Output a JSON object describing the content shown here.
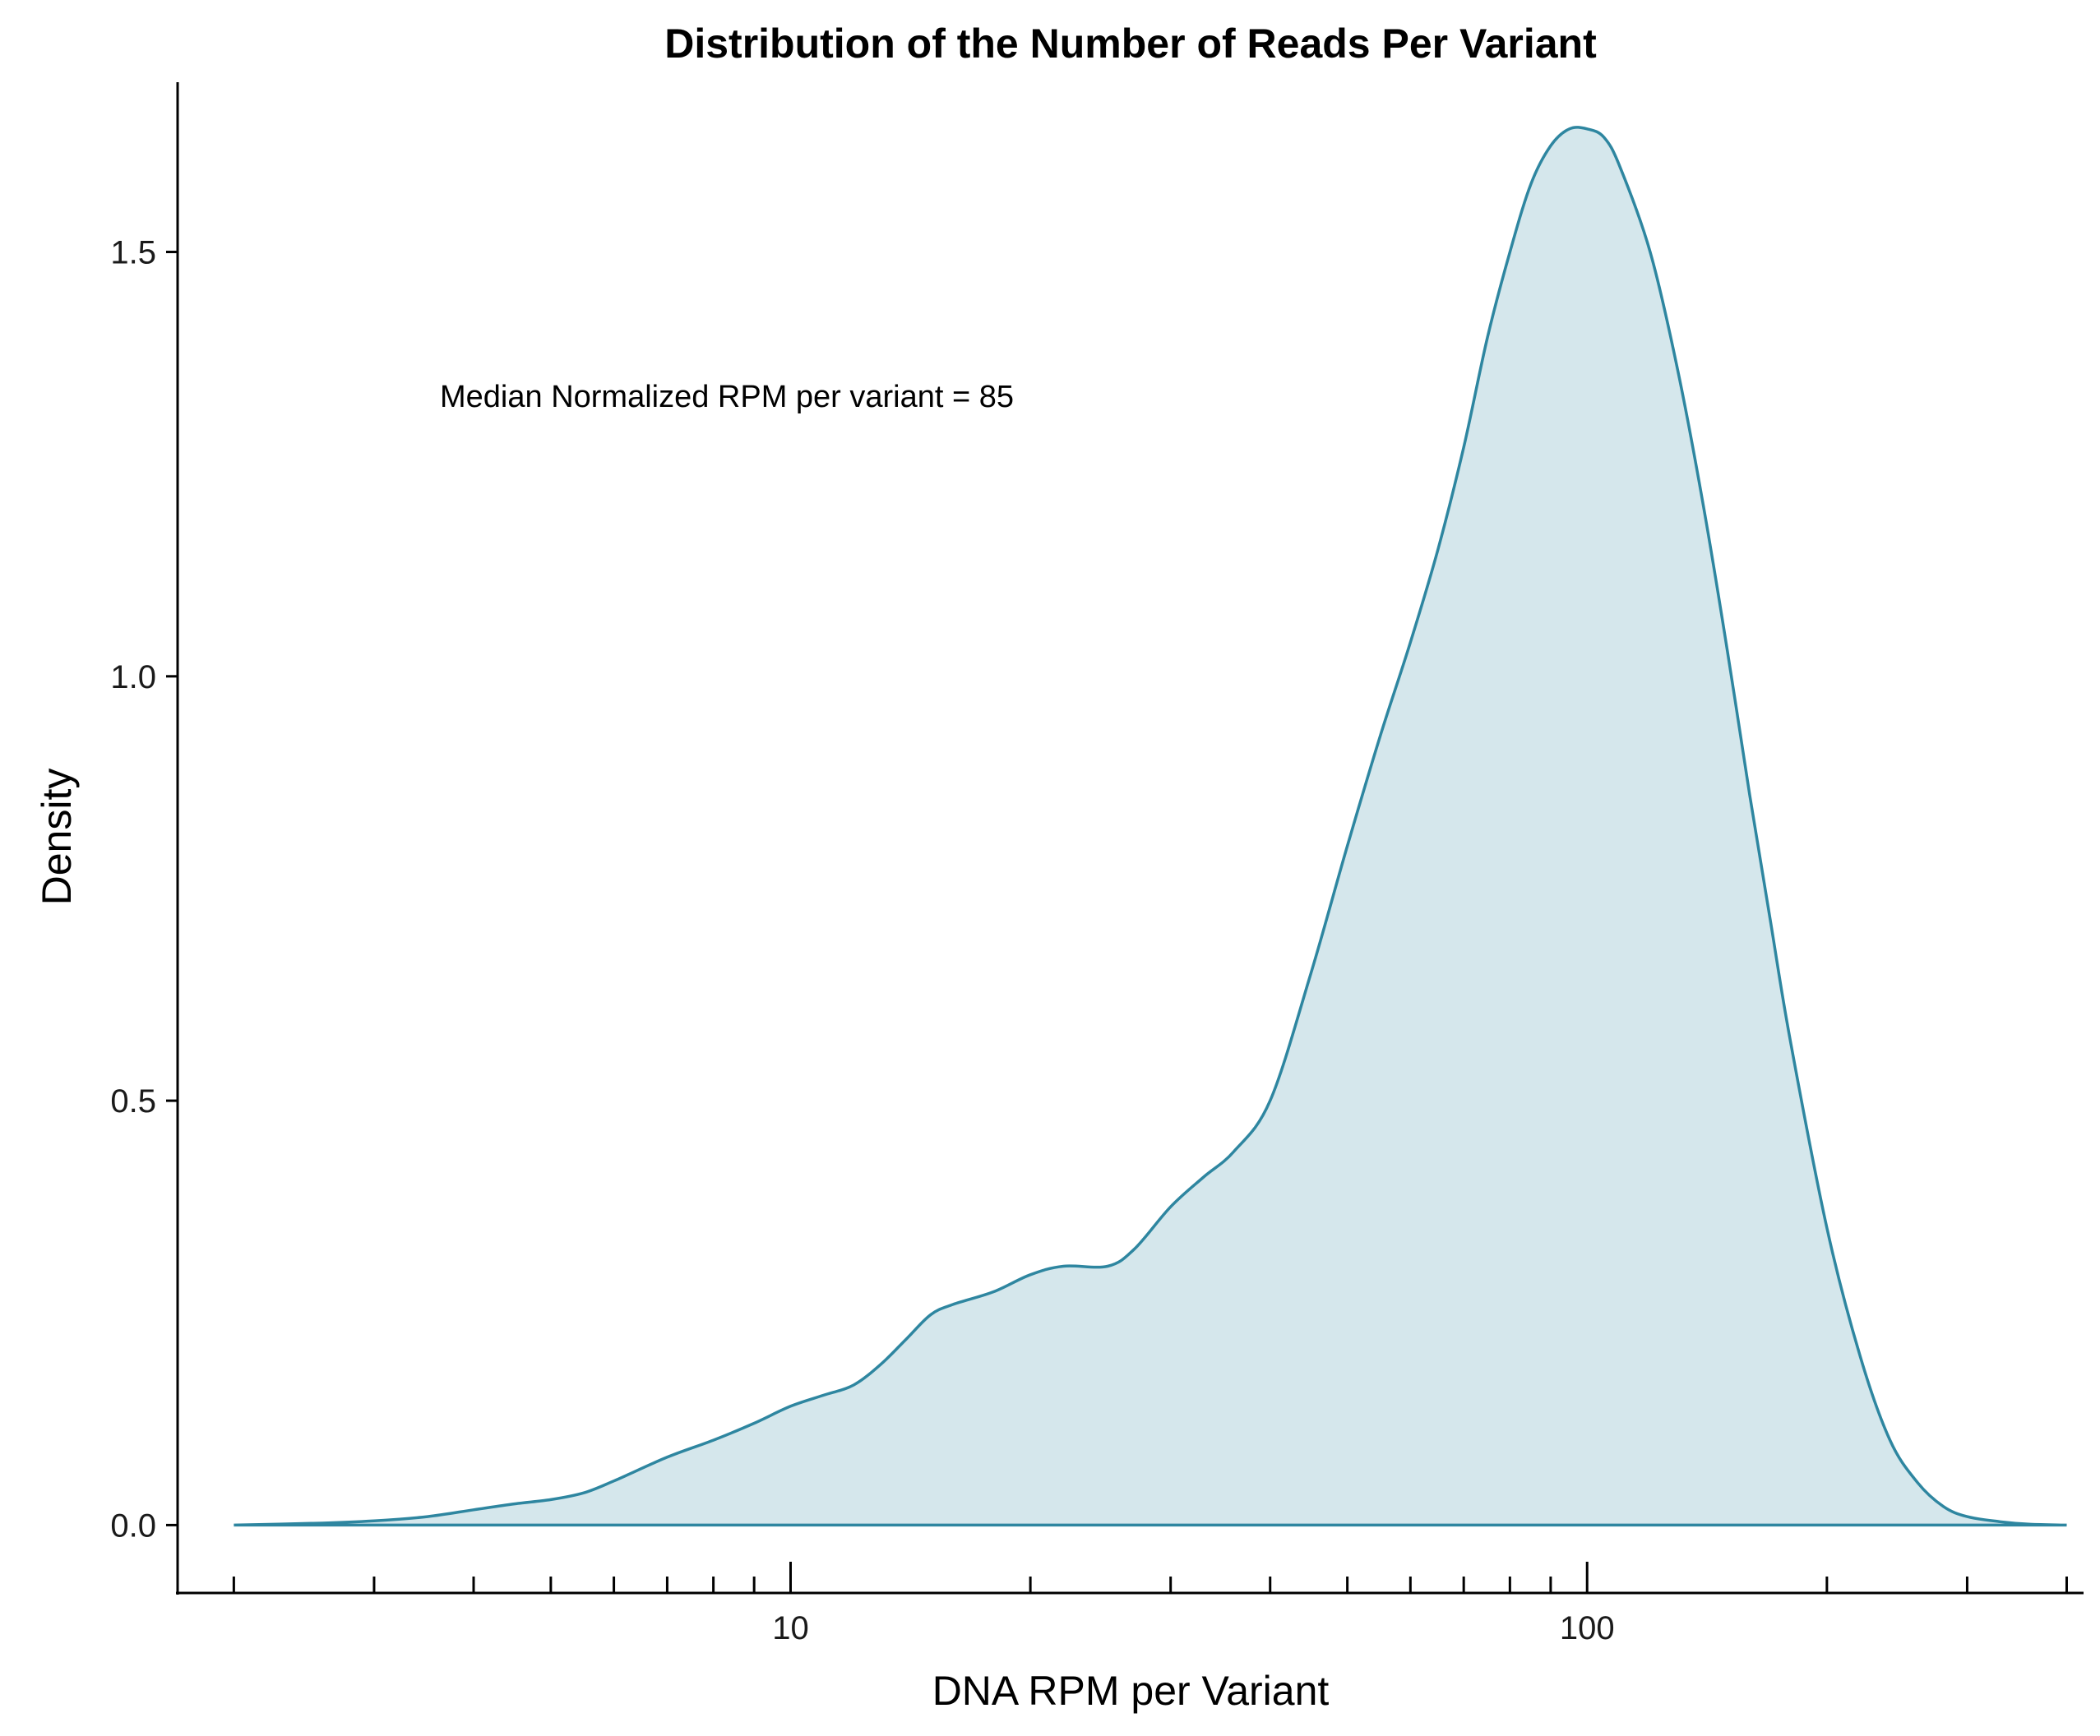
{
  "chart_data": {
    "type": "area",
    "title": "Distribution of the Number of Reads Per Variant",
    "xlabel": "DNA RPM per Variant",
    "ylabel": "Density",
    "x_scale": "log10",
    "xlim": [
      1.7,
      420
    ],
    "ylim": [
      -0.08,
      1.7
    ],
    "x_major_ticks": [
      10,
      100
    ],
    "x_minor_ticks": [
      2,
      3,
      4,
      5,
      6,
      7,
      8,
      9,
      20,
      30,
      40,
      50,
      60,
      70,
      80,
      90,
      200,
      300,
      400
    ],
    "y_ticks": [
      0.0,
      0.5,
      1.0,
      1.5
    ],
    "x_tick_labels": [
      "10",
      "100"
    ],
    "y_tick_labels": [
      "0.0",
      "0.5",
      "1.0",
      "1.5"
    ],
    "grid": false,
    "line_color": "#2e86a0",
    "fill_color": "#d5e7ec",
    "annotation": "Median Normalized RPM per variant = 85",
    "series": [
      {
        "x": [
          2.0,
          2.5,
          3.0,
          3.5,
          4.0,
          4.5,
          5.0,
          5.5,
          6.0,
          7.0,
          8.0,
          9.0,
          10.0,
          11.0,
          12.0,
          13.0,
          14.0,
          15.0,
          16.0,
          18.0,
          20.0,
          22.0,
          25.0,
          27.0,
          30.0,
          33.0,
          36.0,
          40.0,
          45.0,
          50.0,
          55.0,
          60.0,
          65.0,
          70.0,
          75.0,
          80.0,
          85.0,
          90.0,
          95.0,
          100.0,
          105.0,
          110.0,
          120.0,
          130.0,
          140.0,
          150.0,
          160.0,
          170.0,
          180.0,
          200.0,
          220.0,
          240.0,
          260.0,
          280.0,
          300.0,
          330.0,
          360.0,
          400.0
        ],
        "y": [
          0.0,
          0.002,
          0.005,
          0.01,
          0.018,
          0.025,
          0.03,
          0.038,
          0.052,
          0.08,
          0.1,
          0.12,
          0.14,
          0.153,
          0.165,
          0.19,
          0.22,
          0.248,
          0.26,
          0.275,
          0.295,
          0.305,
          0.305,
          0.325,
          0.375,
          0.41,
          0.44,
          0.5,
          0.65,
          0.8,
          0.93,
          1.04,
          1.15,
          1.27,
          1.4,
          1.5,
          1.58,
          1.625,
          1.645,
          1.645,
          1.635,
          1.6,
          1.5,
          1.36,
          1.2,
          1.03,
          0.86,
          0.71,
          0.57,
          0.35,
          0.2,
          0.1,
          0.05,
          0.022,
          0.01,
          0.004,
          0.001,
          0.0
        ]
      }
    ]
  }
}
